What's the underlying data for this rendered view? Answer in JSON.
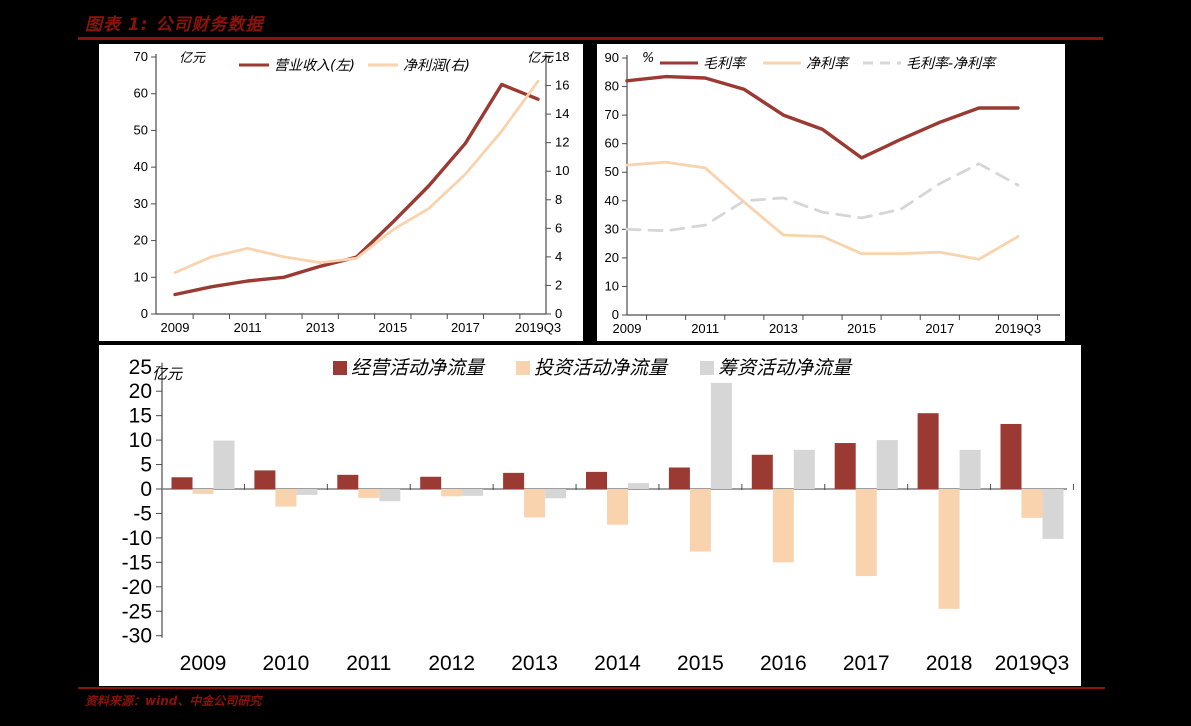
{
  "title": "图表 1: 公司财务数据",
  "source": "资料来源：wind、中金公司研究",
  "colors": {
    "page_bg": "#000000",
    "panel_bg": "#ffffff",
    "heading_red": "#8c1309",
    "series_red": "#9a3a33",
    "series_peach": "#f9d2ae",
    "series_gray": "#d6d6d6",
    "axis_line": "#4d4d4d",
    "zero_line": "#7f7f7f",
    "text": "#000000"
  },
  "chart_data": [
    {
      "id": "revenue-profit",
      "type": "line",
      "unit_left": "亿元",
      "unit_right": "亿元",
      "x": [
        "2009",
        "2010",
        "2011",
        "2012",
        "2013",
        "2014",
        "2015",
        "2016",
        "2017",
        "2018",
        "2019Q3"
      ],
      "x_tick_labels": [
        "2009",
        "2011",
        "2013",
        "2015",
        "2017",
        "2019Q3"
      ],
      "ylim_left": [
        0,
        70
      ],
      "ytick_step_left": 10,
      "ylim_right": [
        0,
        18
      ],
      "ytick_step_right": 2,
      "grid": false,
      "legend_position": "top",
      "series": [
        {
          "name": "营业收入(左)",
          "axis": "left",
          "style": "solid",
          "color": "series_red",
          "values": [
            5.3,
            7.4,
            9,
            10,
            13,
            15.5,
            25,
            35,
            46.5,
            62.5,
            58.5
          ]
        },
        {
          "name": "净利润(右)",
          "axis": "right",
          "style": "solid",
          "color": "series_peach",
          "values": [
            2.9,
            4.0,
            4.6,
            4.0,
            3.6,
            3.9,
            5.9,
            7.4,
            9.8,
            12.8,
            16.3
          ]
        }
      ]
    },
    {
      "id": "margins",
      "type": "line",
      "unit_left": "%",
      "x": [
        "2009",
        "2010",
        "2011",
        "2012",
        "2013",
        "2014",
        "2015",
        "2016",
        "2017",
        "2018",
        "2019Q3"
      ],
      "x_tick_labels": [
        "2009",
        "2011",
        "2013",
        "2015",
        "2017",
        "2019Q3"
      ],
      "ylim_left": [
        0,
        90
      ],
      "ytick_step_left": 10,
      "grid": false,
      "legend_position": "top",
      "series": [
        {
          "name": "毛利率",
          "axis": "left",
          "style": "solid",
          "color": "series_red",
          "values": [
            82,
            83.5,
            83,
            79,
            70,
            65,
            55,
            61.5,
            67.5,
            72.5,
            72.5
          ]
        },
        {
          "name": "净利率",
          "axis": "left",
          "style": "solid",
          "color": "series_peach",
          "values": [
            52.5,
            53.5,
            51.5,
            39.5,
            28,
            27.5,
            21.5,
            21.5,
            22,
            19.5,
            27.5
          ]
        },
        {
          "name": "毛利率-净利率",
          "axis": "left",
          "style": "dashed",
          "color": "series_gray",
          "values": [
            30,
            29.5,
            31.5,
            40,
            41,
            36,
            34,
            37,
            46,
            53,
            45.5
          ]
        }
      ]
    },
    {
      "id": "cashflow",
      "type": "bar",
      "unit": "亿元",
      "categories": [
        "2009",
        "2010",
        "2011",
        "2012",
        "2013",
        "2014",
        "2015",
        "2016",
        "2017",
        "2018",
        "2019Q3"
      ],
      "ylim": [
        -30,
        25
      ],
      "ytick_step": 5,
      "grid": false,
      "legend_position": "top",
      "series": [
        {
          "name": "经营活动净流量",
          "color": "series_red",
          "values": [
            2.4,
            3.8,
            2.9,
            2.5,
            3.3,
            3.5,
            4.4,
            7.0,
            9.4,
            15.5,
            13.3
          ]
        },
        {
          "name": "投资活动净流量",
          "color": "series_peach",
          "values": [
            -1.0,
            -3.6,
            -1.8,
            -1.5,
            -5.8,
            -7.3,
            -12.8,
            -15.0,
            -17.8,
            -24.5,
            -5.9
          ]
        },
        {
          "name": "筹资活动净流量",
          "color": "series_gray",
          "values": [
            9.9,
            -1.2,
            -2.5,
            -1.4,
            -1.9,
            1.2,
            21.7,
            8.0,
            10.0,
            8.0,
            -10.2
          ]
        }
      ]
    }
  ]
}
